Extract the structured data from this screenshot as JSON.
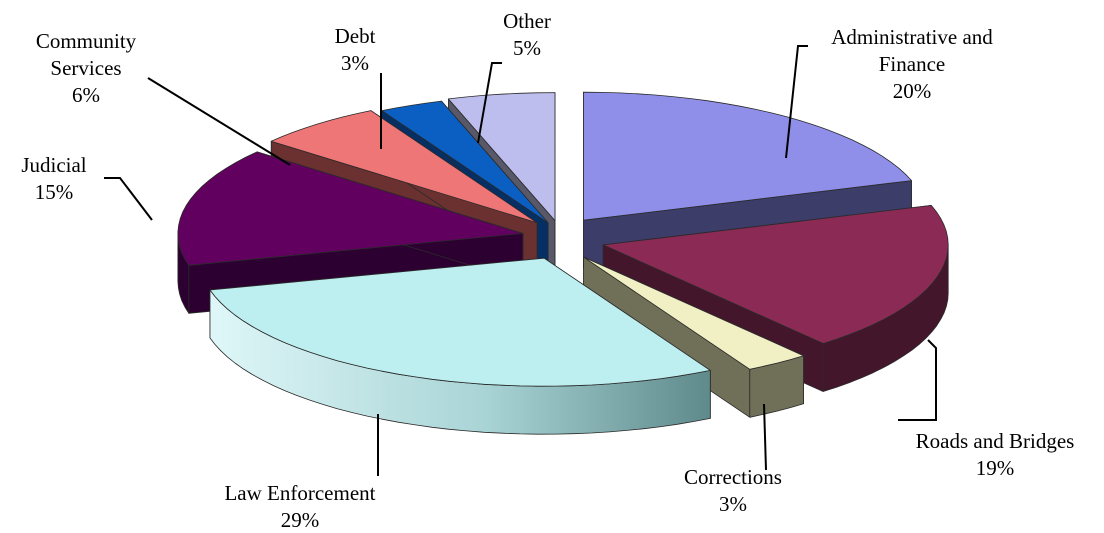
{
  "chart_data": {
    "type": "pie",
    "style": "3d-exploded",
    "title": "",
    "slices": [
      {
        "name": "Administrative and Finance",
        "label_lines": [
          "Administrative and",
          "Finance"
        ],
        "value_label": "20%",
        "value": 20,
        "color": "#8f8fea",
        "side_color": "#3d3d6a"
      },
      {
        "name": "Roads and Bridges",
        "label_lines": [
          "Roads and Bridges"
        ],
        "value_label": "19%",
        "value": 19,
        "color": "#8b2b55",
        "side_color": "#44162b"
      },
      {
        "name": "Corrections",
        "label_lines": [
          "Corrections"
        ],
        "value_label": "3%",
        "value": 3,
        "color": "#f1f0c4",
        "side_color": "#707058"
      },
      {
        "name": "Law Enforcement",
        "label_lines": [
          "Law Enforcement"
        ],
        "value_label": "29%",
        "value": 29,
        "color": "#bdeef0",
        "side_color": "#87b4b4"
      },
      {
        "name": "Judicial",
        "label_lines": [
          "Judicial"
        ],
        "value_label": "15%",
        "value": 15,
        "color": "#620060",
        "side_color": "#2c0030"
      },
      {
        "name": "Community Services",
        "label_lines": [
          "Community",
          "Services"
        ],
        "value_label": "6%",
        "value": 6,
        "color": "#ee7676",
        "side_color": "#6b3030"
      },
      {
        "name": "Debt",
        "label_lines": [
          "Debt"
        ],
        "value_label": "3%",
        "value": 3,
        "color": "#0b5fc2",
        "side_color": "#062f63"
      },
      {
        "name": "Other",
        "label_lines": [
          "Other"
        ],
        "value_label": "5%",
        "value": 5,
        "color": "#bdbdee",
        "side_color": "#585868"
      }
    ]
  }
}
